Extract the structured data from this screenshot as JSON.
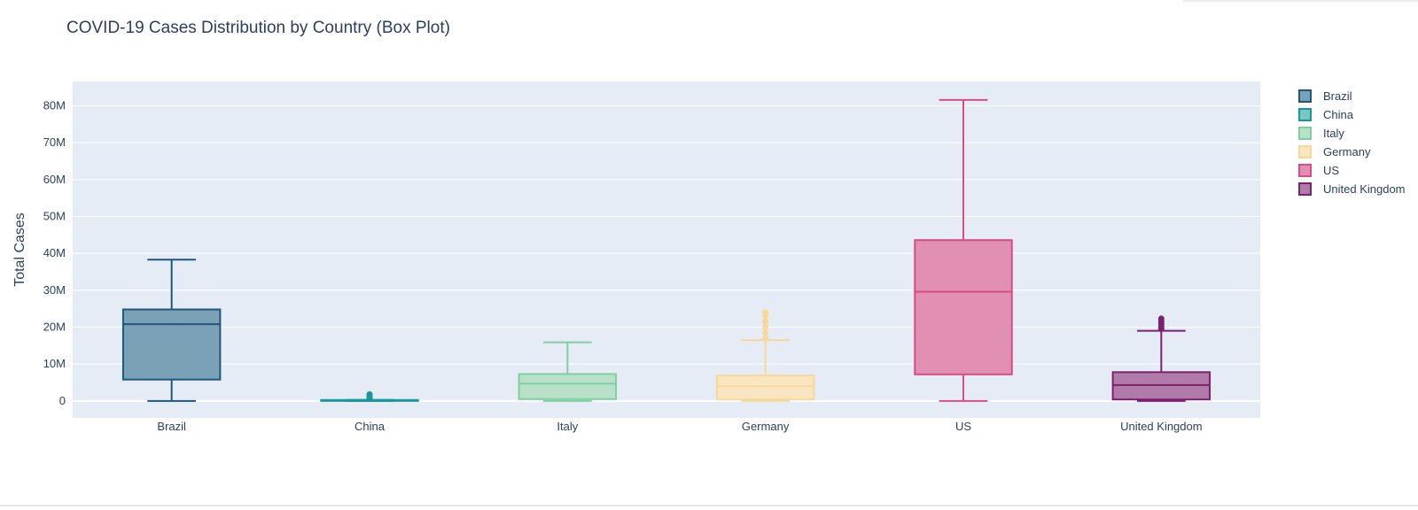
{
  "chart_data": {
    "type": "box",
    "title": "COVID-19 Cases Distribution by Country (Box Plot)",
    "xlabel": "",
    "ylabel": "Total Cases",
    "ylim": [
      -4600000,
      86600000
    ],
    "yticks": [
      0,
      10000000,
      20000000,
      30000000,
      40000000,
      50000000,
      60000000,
      70000000,
      80000000
    ],
    "ytick_labels": [
      "0",
      "10M",
      "20M",
      "30M",
      "40M",
      "50M",
      "60M",
      "70M",
      "80M"
    ],
    "grid": true,
    "legend_position": "top-right",
    "categories": [
      "Brazil",
      "China",
      "Italy",
      "Germany",
      "US",
      "United Kingdom"
    ],
    "series": [
      {
        "name": "Brazil",
        "color": "#1f587c",
        "fill": "#7aa1b5",
        "min": 0,
        "q1": 5800000,
        "median": 20800000,
        "q3": 24800000,
        "max": 38300000,
        "outliers": []
      },
      {
        "name": "China",
        "color": "#1a9696",
        "fill": "#7ac6c6",
        "min": 0,
        "q1": 60000,
        "median": 120000,
        "q3": 250000,
        "max": 300000,
        "outliers": [
          600000,
          1000000,
          1400000,
          1800000
        ]
      },
      {
        "name": "Italy",
        "color": "#80cfa0",
        "fill": "#b8e2c8",
        "min": 0,
        "q1": 500000,
        "median": 4700000,
        "q3": 7300000,
        "max": 15900000,
        "outliers": []
      },
      {
        "name": "Germany",
        "color": "#f7d89a",
        "fill": "#f9e5c0",
        "min": 0,
        "q1": 400000,
        "median": 4000000,
        "q3": 6900000,
        "max": 16500000,
        "outliers": [
          17000000,
          18500000,
          20000000,
          21500000,
          23000000,
          24000000
        ]
      },
      {
        "name": "US",
        "color": "#d94b87",
        "fill": "#e190b4",
        "min": 0,
        "q1": 7200000,
        "median": 29600000,
        "q3": 43600000,
        "max": 81600000,
        "outliers": []
      },
      {
        "name": "United Kingdom",
        "color": "#7b2170",
        "fill": "#b07ba8",
        "min": 0,
        "q1": 400000,
        "median": 4300000,
        "q3": 7800000,
        "max": 19000000,
        "outliers": [
          19500000,
          20200000,
          20900000,
          21600000,
          22300000
        ]
      }
    ]
  }
}
